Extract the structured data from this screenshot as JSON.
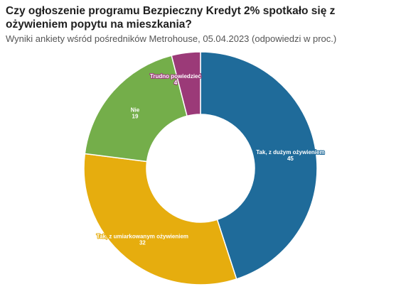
{
  "header": {
    "title": "Czy ogłoszenie programu Bezpieczny Kredyt 2% spotkało się z ożywieniem popytu na mieszkania?",
    "subtitle": "Wyniki ankiety wśród pośredników Metrohouse, 05.04.2023 (odpowiedzi w proc.)"
  },
  "chart_data": {
    "type": "pie",
    "donut": true,
    "categories": [
      "Tak, z dużym ożywieniem",
      "Tak, z umiarkowanym ożywieniem",
      "Nie",
      "Trudno powiedzieć"
    ],
    "values": [
      45,
      32,
      19,
      4
    ],
    "colors": [
      "#1f6b9a",
      "#e6ad0e",
      "#74ae4a",
      "#9b3a78"
    ],
    "legend": "none"
  }
}
